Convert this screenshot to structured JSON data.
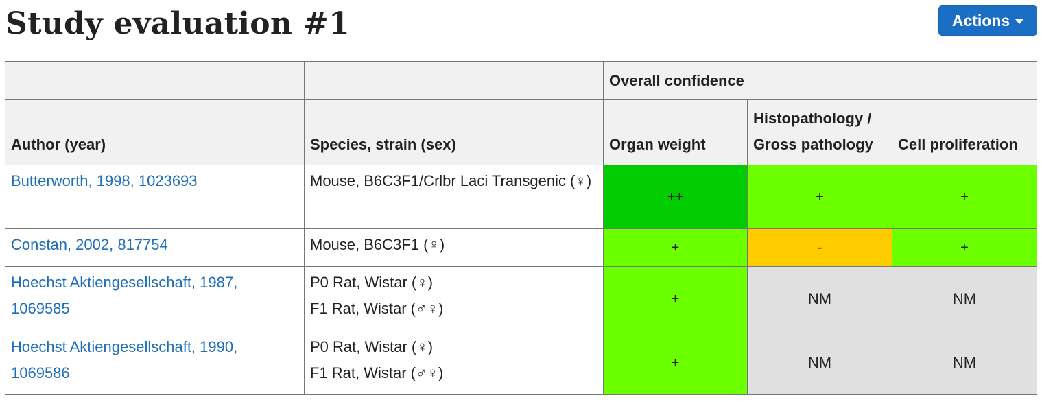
{
  "page": {
    "title": "Study evaluation #1",
    "actions_label": "Actions"
  },
  "table": {
    "group_header": "Overall confidence",
    "headers": {
      "author": "Author (year)",
      "species": "Species, strain (sex)",
      "organ_weight": "Organ weight",
      "histopathology": "Histopathology / Gross pathology",
      "cell_proliferation": "Cell proliferation"
    },
    "rows": [
      {
        "author": "Butterworth, 1998, 1023693",
        "species": [
          "Mouse, B6C3F1/Crlbr Laci Transgenic (♀)"
        ],
        "organ_weight": "++",
        "histopathology": "+",
        "cell_proliferation": "+"
      },
      {
        "author": "Constan, 2002, 817754",
        "species": [
          "Mouse, B6C3F1 (♀)"
        ],
        "organ_weight": "+",
        "histopathology": "-",
        "cell_proliferation": "+"
      },
      {
        "author": "Hoechst Aktiengesellschaft, 1987, 1069585",
        "species": [
          "P0 Rat, Wistar (♀)",
          "F1 Rat, Wistar (♂♀)"
        ],
        "organ_weight": "+",
        "histopathology": "NM",
        "cell_proliferation": "NM"
      },
      {
        "author": "Hoechst Aktiengesellschaft, 1990, 1069586",
        "species": [
          "P0 Rat, Wistar (♀)",
          "F1 Rat, Wistar (♂♀)"
        ],
        "organ_weight": "+",
        "histopathology": "NM",
        "cell_proliferation": "NM"
      }
    ]
  },
  "colors": {
    "score_double_plus": "#00cc00",
    "score_plus": "#6cff00",
    "score_minus": "#ffcc00",
    "score_nm": "#e0e0e0",
    "link": "#1f6fb8",
    "actions_button": "#1a6fc4"
  }
}
